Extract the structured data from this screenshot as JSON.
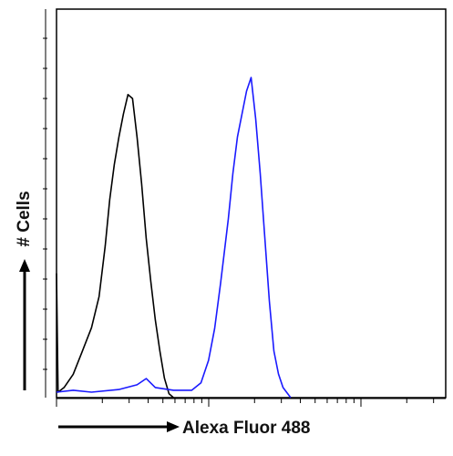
{
  "chart_data": {
    "type": "line",
    "x_label": "Alexa Fluor 488",
    "y_label": "# Cells",
    "xlim": [
      0,
      256
    ],
    "ylim": [
      0,
      100
    ],
    "series": [
      {
        "color": "#000000",
        "x": [
          0,
          1,
          5,
          11,
          17,
          23,
          28,
          32,
          35,
          38,
          41,
          44,
          47,
          50,
          53,
          56,
          59,
          62,
          65,
          68,
          71,
          74,
          77
        ],
        "values": [
          32,
          1.4,
          2.6,
          6,
          12,
          18,
          26,
          39,
          51,
          60,
          67,
          73,
          78,
          77,
          67,
          55,
          41,
          30,
          20,
          12,
          5,
          1,
          0
        ]
      },
      {
        "color": "#1a1aff",
        "x": [
          0,
          11,
          23,
          41,
          53,
          59,
          65,
          77,
          89,
          95,
          100,
          104,
          108,
          113,
          116,
          119,
          122,
          125,
          128,
          131,
          134,
          137,
          140,
          143,
          146,
          149,
          154
        ],
        "values": [
          1.4,
          1.9,
          1.4,
          2.1,
          3.3,
          4.9,
          2.6,
          1.9,
          1.9,
          3.8,
          9.6,
          17.8,
          29.6,
          46,
          57.7,
          67.1,
          73,
          78.9,
          82.4,
          71.8,
          57.7,
          41.3,
          24.9,
          12,
          6.1,
          2.6,
          0
        ]
      }
    ]
  }
}
